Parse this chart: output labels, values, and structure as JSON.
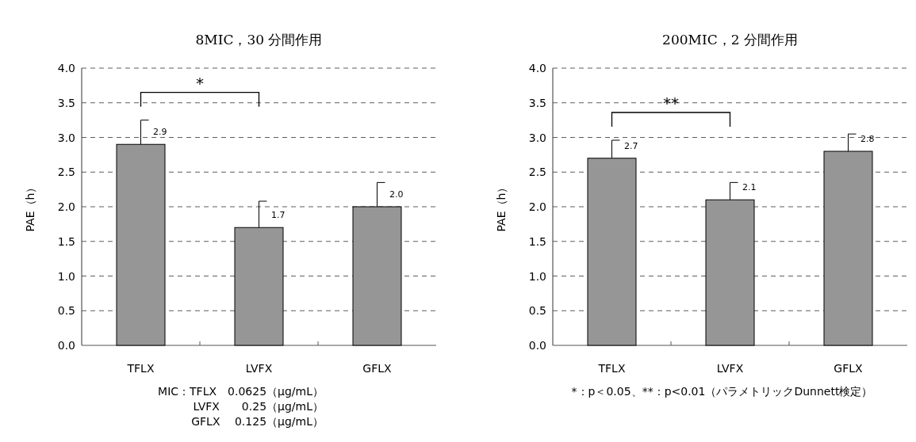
{
  "chart_data": [
    {
      "type": "bar",
      "title": "8MIC，30 分間作用",
      "ylabel": "PAE（h）",
      "categories": [
        "TFLX",
        "LVFX",
        "GFLX"
      ],
      "values": [
        2.9,
        1.7,
        2.0
      ],
      "errors": [
        [
          2.9,
          3.25
        ],
        [
          1.7,
          2.08
        ],
        [
          2.0,
          2.35
        ]
      ],
      "value_labels": [
        "2.9",
        "1.7",
        "2.0"
      ],
      "color": "#969696",
      "ylim": [
        0,
        4
      ],
      "yticks": [
        {
          "value": 0,
          "label": "0.0"
        },
        {
          "value": 0.5,
          "label": "0.5"
        },
        {
          "value": 1,
          "label": "1.0"
        },
        {
          "value": 1.5,
          "label": "1.5"
        },
        {
          "value": 2,
          "label": "2.0"
        },
        {
          "value": 2.5,
          "label": "2.5"
        },
        {
          "value": 3,
          "label": "3.0"
        },
        {
          "value": 3.5,
          "label": "3.5"
        },
        {
          "value": 4,
          "label": "4.0"
        }
      ],
      "grid": "y",
      "annotations": [
        "*",
        "MIC：TFLX　0.0625（μg/mL）",
        "LVFX　　0.25（μg/mL）",
        "GFLX　 0.125（μg/mL）"
      ]
    },
    {
      "type": "bar",
      "title": "200MIC，2 分間作用",
      "ylabel": "PAE（h）",
      "categories": [
        "TFLX",
        "LVFX",
        "GFLX"
      ],
      "values": [
        2.7,
        2.1,
        2.8
      ],
      "errors": [
        [
          2.7,
          2.96
        ],
        [
          2.1,
          2.35
        ],
        [
          2.8,
          3.05
        ]
      ],
      "value_labels": [
        "2.7",
        "2.1",
        "2.8"
      ],
      "color": "#969696",
      "ylim": [
        0,
        4
      ],
      "yticks": [
        {
          "value": 0,
          "label": "0.0"
        },
        {
          "value": 0.5,
          "label": "0.5"
        },
        {
          "value": 1,
          "label": "1.0"
        },
        {
          "value": 1.5,
          "label": "1.5"
        },
        {
          "value": 2,
          "label": "2.0"
        },
        {
          "value": 2.5,
          "label": "2.5"
        },
        {
          "value": 3,
          "label": "3.0"
        },
        {
          "value": 3.5,
          "label": "3.5"
        },
        {
          "value": 4,
          "label": "4.0"
        }
      ],
      "grid": "y",
      "annotations": [
        "**",
        "*：p＜0.05、**：p<0.01（パラメトリックDunnett検定）"
      ]
    }
  ]
}
